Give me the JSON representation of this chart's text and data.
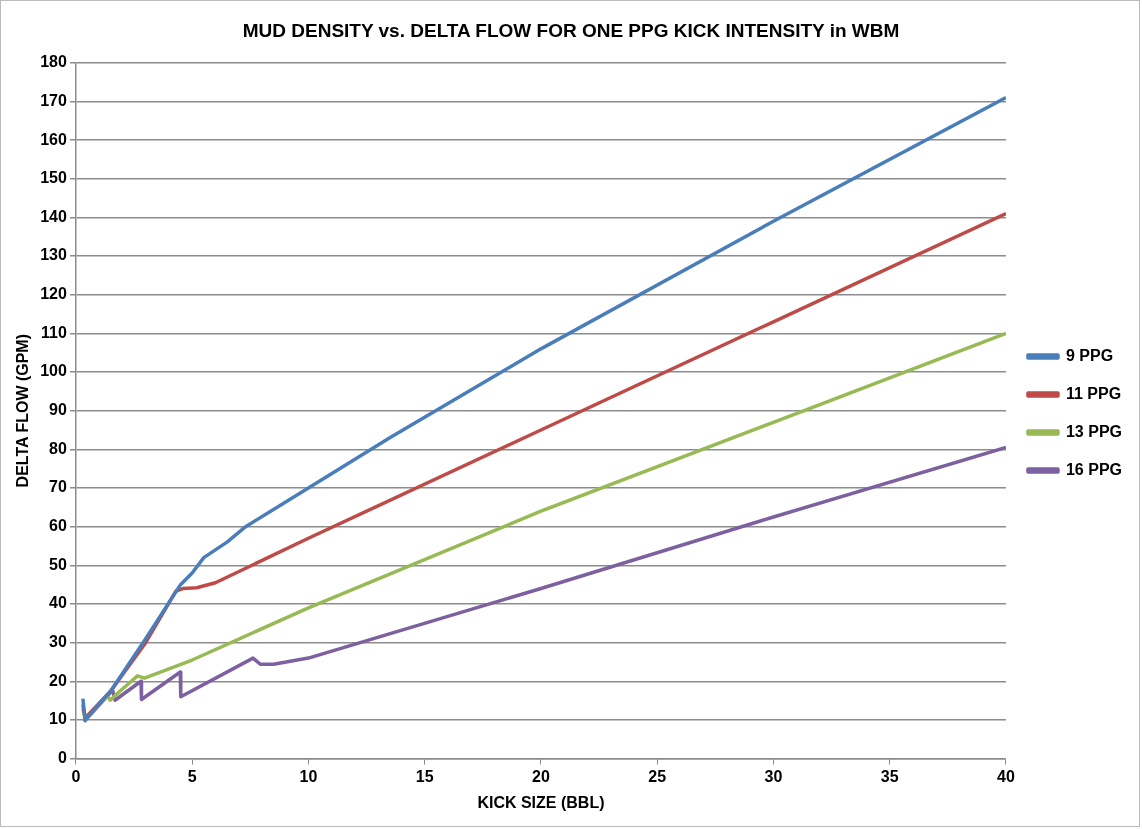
{
  "chart_data": {
    "type": "line",
    "title": "MUD DENSITY vs. DELTA FLOW FOR ONE PPG KICK INTENSITY in WBM",
    "xlabel": "KICK SIZE (BBL)",
    "ylabel": "DELTA FLOW (GPM)",
    "xlim": [
      0,
      40
    ],
    "xticks": [
      0,
      5,
      10,
      15,
      20,
      25,
      30,
      35,
      40
    ],
    "ylim": [
      0,
      180
    ],
    "yticks": [
      0,
      10,
      20,
      30,
      40,
      50,
      60,
      70,
      80,
      90,
      100,
      110,
      120,
      130,
      140,
      150,
      160,
      170,
      180
    ],
    "grid": "y",
    "legend": "right",
    "marker": "none",
    "line_style": "solid",
    "series": [
      {
        "name": "9 PPG",
        "color": "#4a7ebb",
        "x": [
          0.3,
          0.4,
          1.5,
          3,
          4.5,
          5,
          5.5,
          6.5,
          7.3,
          10,
          13.5,
          20,
          30,
          40
        ],
        "values": [
          15.5,
          10,
          17.5,
          31,
          45,
          48,
          52,
          56,
          60,
          70,
          83,
          106,
          139,
          171
        ]
      },
      {
        "name": "11 PPG",
        "color": "#be4b48",
        "x": [
          0.3,
          0.4,
          1.5,
          3,
          4.3,
          4.6,
          5.2,
          6,
          10,
          20,
          30,
          40
        ],
        "values": [
          14,
          10.5,
          17.5,
          30,
          43.3,
          44,
          44.2,
          45.5,
          57,
          85,
          113,
          141
        ]
      },
      {
        "name": "13 PPG",
        "color": "#98b954",
        "x": [
          0.3,
          0.4,
          1.35,
          1.47,
          2,
          2.65,
          2.95,
          5,
          10,
          20,
          30,
          40
        ],
        "values": [
          13,
          10,
          16.4,
          15.1,
          18,
          21.4,
          20.8,
          25.5,
          39,
          64,
          87,
          110
        ]
      },
      {
        "name": "16 PPG",
        "color": "#7d60a0",
        "x": [
          0.35,
          1.58,
          1.68,
          2.8,
          2.82,
          4.49,
          4.51,
          7.62,
          7.93,
          8.5,
          10,
          20,
          30,
          40
        ],
        "values": [
          9.5,
          17.7,
          15.1,
          20,
          15.3,
          22.4,
          16,
          26,
          24.4,
          24.4,
          26,
          44,
          62.5,
          80.5
        ]
      }
    ]
  }
}
